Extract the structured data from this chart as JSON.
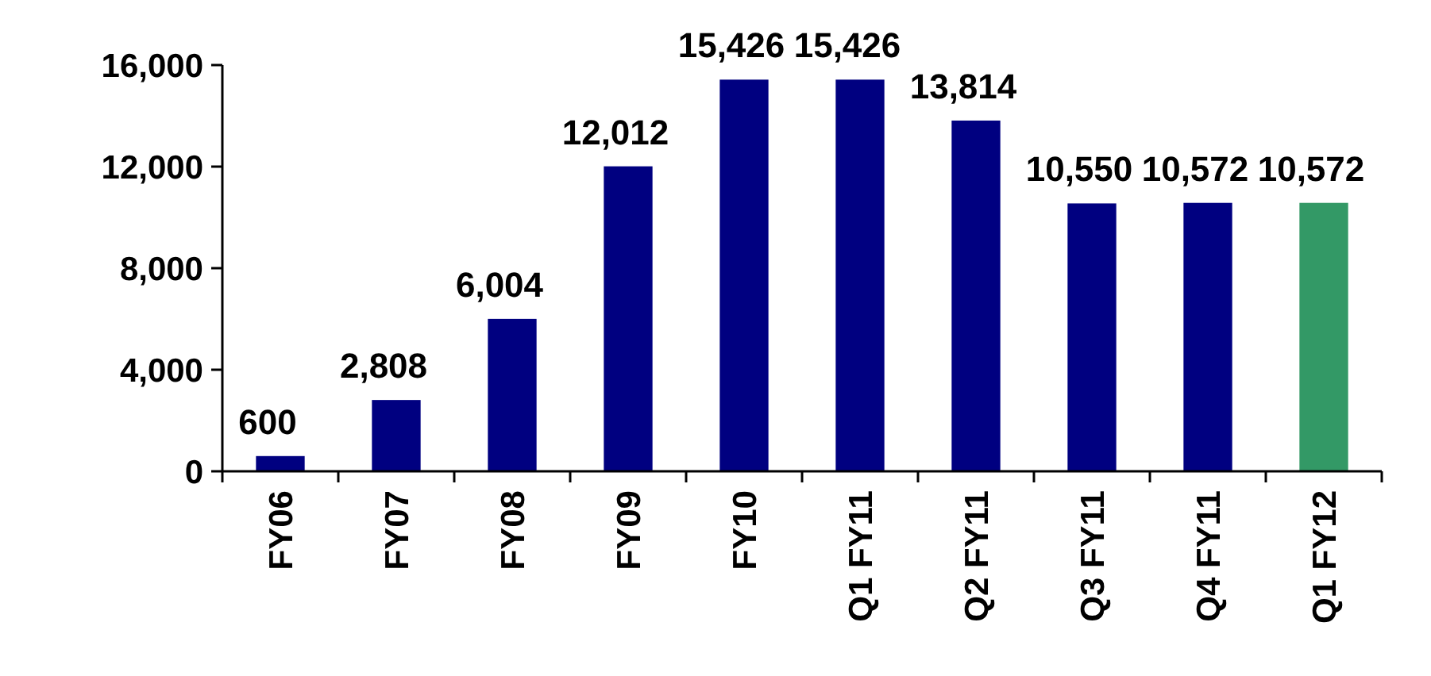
{
  "chart_data": {
    "type": "bar",
    "categories": [
      "FY06",
      "FY07",
      "FY08",
      "FY09",
      "FY10",
      "Q1 FY11",
      "Q2 FY11",
      "Q3 FY11",
      "Q4 FY11",
      "Q1 FY12"
    ],
    "values": [
      600,
      2808,
      6004,
      12012,
      15426,
      15426,
      13814,
      10550,
      10572,
      10572
    ],
    "value_labels": [
      "600",
      "2,808",
      "6,004",
      "12,012",
      "15,426",
      "15,426",
      "13,814",
      "10,550",
      "10,572",
      "10,572"
    ],
    "colors": [
      "#000080",
      "#000080",
      "#000080",
      "#000080",
      "#000080",
      "#000080",
      "#000080",
      "#000080",
      "#000080",
      "#339966"
    ],
    "ylim": [
      0,
      16000
    ],
    "yticks": [
      {
        "value": 0,
        "label": "0"
      },
      {
        "value": 4000,
        "label": "4,000"
      },
      {
        "value": 8000,
        "label": "8,000"
      },
      {
        "value": 12000,
        "label": "12,000"
      },
      {
        "value": 16000,
        "label": "16,000"
      }
    ]
  }
}
